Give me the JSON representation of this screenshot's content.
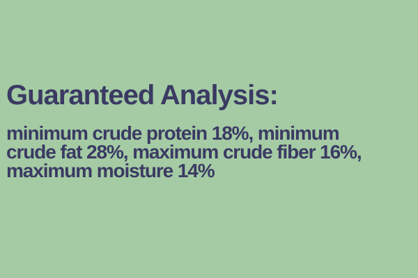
{
  "panel": {
    "title": "Guaranteed Analysis:",
    "lines": [
      "minimum crude protein 18%, minimum",
      "crude fat 28%, maximum crude fiber 16%,",
      "maximum moisture 14%"
    ],
    "colors": {
      "background": "#a4cba4",
      "text": "#3b3a63"
    }
  }
}
